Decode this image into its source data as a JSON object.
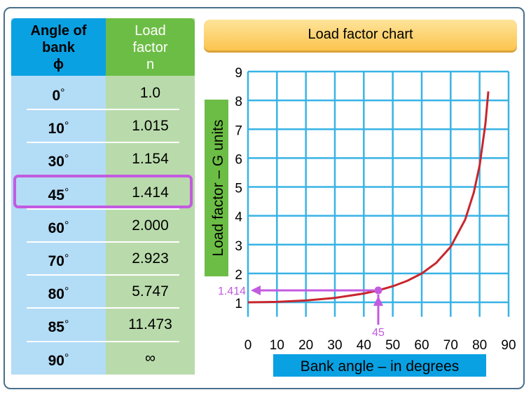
{
  "table": {
    "header_angle": [
      "Angle of",
      "bank",
      "ϕ"
    ],
    "header_load": [
      "Load",
      "factor",
      "n"
    ],
    "rows": [
      {
        "angle": "0",
        "load": "1.0"
      },
      {
        "angle": "10",
        "load": "1.015"
      },
      {
        "angle": "30",
        "load": "1.154"
      },
      {
        "angle": "45",
        "load": "1.414"
      },
      {
        "angle": "60",
        "load": "2.000"
      },
      {
        "angle": "70",
        "load": "2.923"
      },
      {
        "angle": "80",
        "load": "5.747"
      },
      {
        "angle": "85",
        "load": "11.473"
      },
      {
        "angle": "90",
        "load": "∞"
      }
    ],
    "degree_symbol": "°",
    "highlighted_angle": "45"
  },
  "chart_data": {
    "type": "line",
    "title": "Load factor chart",
    "xlabel": "Bank angle – in degrees",
    "ylabel": "Load factor – G units",
    "xlim": [
      0,
      90
    ],
    "ylim": [
      1,
      9
    ],
    "xticks": [
      "0",
      "10",
      "20",
      "30",
      "40",
      "50",
      "60",
      "70",
      "80",
      "90"
    ],
    "yticks": [
      "1",
      "2",
      "3",
      "4",
      "5",
      "6",
      "7",
      "8",
      "9"
    ],
    "grid": true,
    "series": [
      {
        "x": [
          0,
          10,
          20,
          30,
          40,
          45,
          50,
          55,
          60,
          65,
          70,
          75,
          78,
          80,
          82,
          83
        ],
        "y": [
          1.0,
          1.015,
          1.064,
          1.154,
          1.305,
          1.414,
          1.556,
          1.743,
          2.0,
          2.366,
          2.923,
          3.864,
          4.81,
          5.747,
          7.185,
          8.31
        ]
      }
    ],
    "annotation": {
      "x": 45,
      "y": 1.414,
      "x_label": "45",
      "y_label": "1.414"
    },
    "colors": {
      "grid": "#38b3e6",
      "curve": "#c8262d",
      "annotation": "#c35be0",
      "axis_label_bg_x": "#0aa1e3",
      "axis_label_bg_y": "#6cbd45"
    }
  }
}
